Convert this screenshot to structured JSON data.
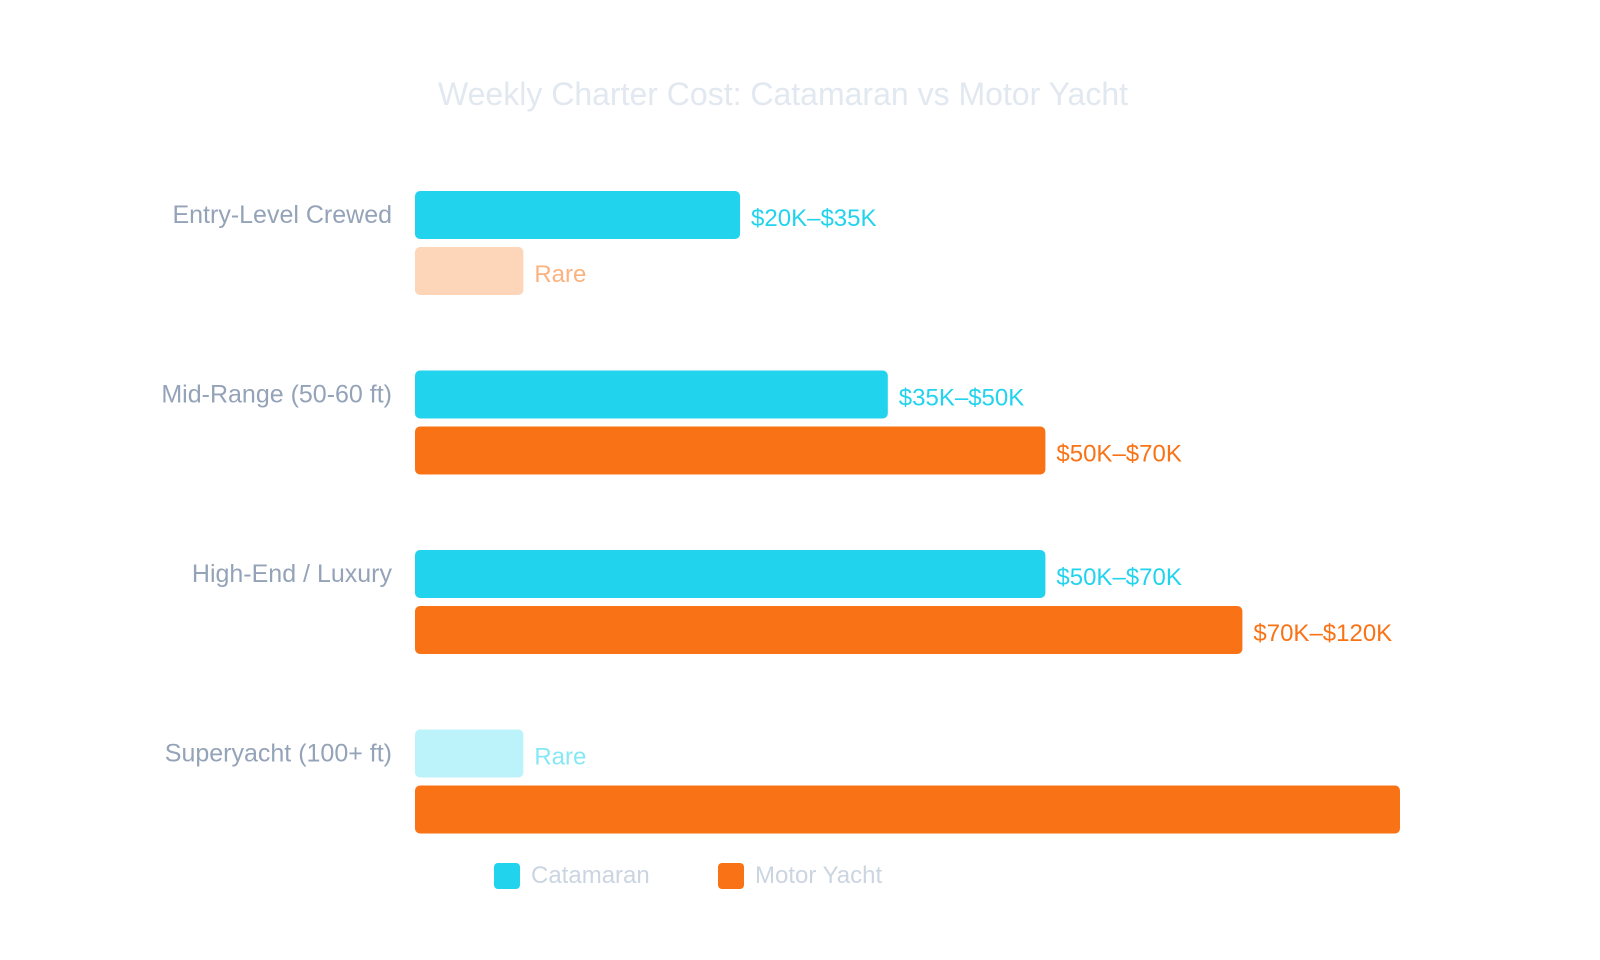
{
  "chart_data": {
    "type": "bar",
    "orientation": "horizontal",
    "title": "Weekly Charter Cost: Catamaran vs Motor Yacht",
    "categories": [
      "Entry-Level Crewed",
      "Mid-Range (50-60 ft)",
      "High-End / Luxury",
      "Superyacht (100+ ft)"
    ],
    "xlim": [
      0,
      100
    ],
    "grid": false,
    "axes_visible": false,
    "legend_position": "bottom",
    "series": [
      {
        "name": "Catamaran",
        "color": "#22d3ee",
        "values": [
          33,
          48,
          64,
          11
        ],
        "labels": [
          "$20K–$35K",
          "$35K–$50K",
          "$50K–$70K",
          "Rare"
        ],
        "faded": [
          false,
          false,
          false,
          true
        ]
      },
      {
        "name": "Motor Yacht",
        "color": "#f97316",
        "values": [
          11,
          64,
          84,
          100
        ],
        "labels": [
          "Rare",
          "$50K–$70K",
          "$70K–$120K",
          ""
        ],
        "faded": [
          true,
          false,
          false,
          false
        ]
      }
    ]
  }
}
